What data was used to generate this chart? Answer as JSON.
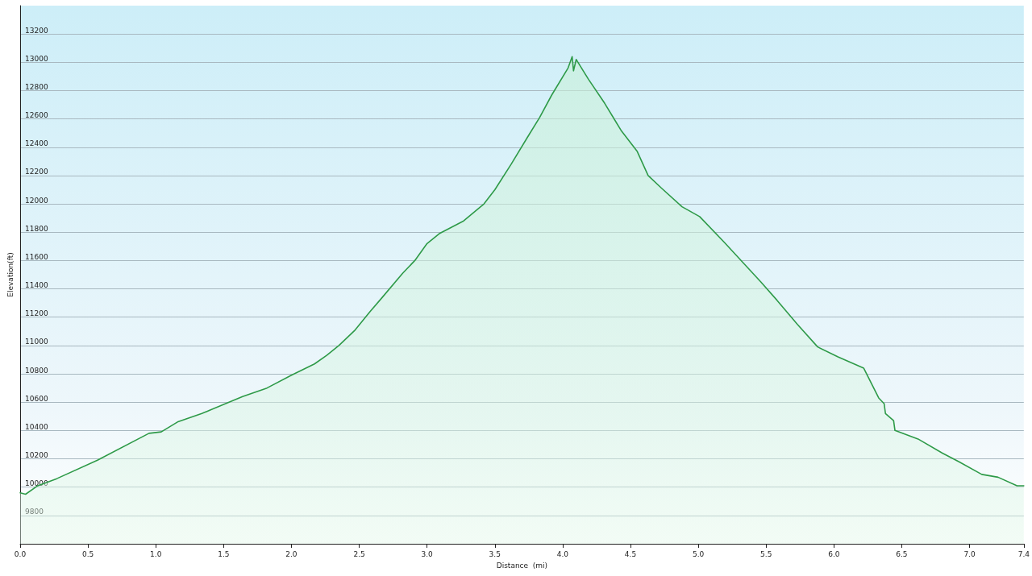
{
  "chart_data": {
    "type": "area",
    "xlabel": "Distance  (mi)",
    "ylabel": "Elevation(ft)",
    "series": [
      {
        "color": "#2e9a48",
        "x": [
          0,
          0.04,
          0.13,
          0.27,
          0.57,
          0.95,
          1.04,
          1.16,
          1.34,
          1.64,
          1.82,
          2.0,
          2.17,
          2.26,
          2.35,
          2.47,
          2.58,
          2.67,
          2.82,
          2.91,
          3.0,
          3.09,
          3.27,
          3.42,
          3.5,
          3.62,
          3.74,
          3.83,
          3.92,
          4.04,
          4.07,
          4.08,
          4.1,
          4.19,
          4.31,
          4.43,
          4.55,
          4.63,
          4.73,
          4.88,
          5.01,
          5.19,
          5.46,
          5.58,
          5.73,
          5.88,
          6.03,
          6.22,
          6.33,
          6.37,
          6.38,
          6.44,
          6.45,
          6.62,
          6.8,
          6.92,
          7.09,
          7.21,
          7.35,
          7.4
        ],
        "values": [
          9960,
          9950,
          10010,
          10060,
          10190,
          10380,
          10390,
          10460,
          10520,
          10640,
          10700,
          10790,
          10870,
          10930,
          11000,
          11110,
          11240,
          11340,
          11510,
          11600,
          11720,
          11790,
          11880,
          12000,
          12100,
          12280,
          12470,
          12610,
          12770,
          12960,
          13040,
          12940,
          13020,
          12880,
          12710,
          12520,
          12370,
          12200,
          12110,
          11980,
          11910,
          11730,
          11450,
          11320,
          11150,
          10990,
          10920,
          10840,
          10630,
          10590,
          10520,
          10470,
          10400,
          10340,
          10240,
          10180,
          10090,
          10070,
          10010,
          10010
        ]
      }
    ],
    "xlim": [
      0,
      7.4
    ],
    "xticks": [
      {
        "value": 0,
        "label": "0.0"
      },
      {
        "value": 0.5,
        "label": "0.5"
      },
      {
        "value": 1,
        "label": "1.0"
      },
      {
        "value": 1.5,
        "label": "1.5"
      },
      {
        "value": 2,
        "label": "2.0"
      },
      {
        "value": 2.5,
        "label": "2.5"
      },
      {
        "value": 3,
        "label": "3.0"
      },
      {
        "value": 3.5,
        "label": "3.5"
      },
      {
        "value": 4,
        "label": "4.0"
      },
      {
        "value": 4.5,
        "label": "4.5"
      },
      {
        "value": 5,
        "label": "5.0"
      },
      {
        "value": 5.5,
        "label": "5.5"
      },
      {
        "value": 6,
        "label": "6.0"
      },
      {
        "value": 6.5,
        "label": "6.5"
      },
      {
        "value": 7,
        "label": "7.0"
      },
      {
        "value": 7.4,
        "label": "7.4"
      }
    ],
    "ylim": [
      9600,
      13400
    ],
    "yticks": [
      9800,
      10000,
      10200,
      10400,
      10600,
      10800,
      11000,
      11200,
      11400,
      11600,
      11800,
      12000,
      12200,
      12400,
      12600,
      12800,
      13000,
      13200
    ],
    "grid": "y",
    "marker": "none",
    "line_style": "solid"
  }
}
